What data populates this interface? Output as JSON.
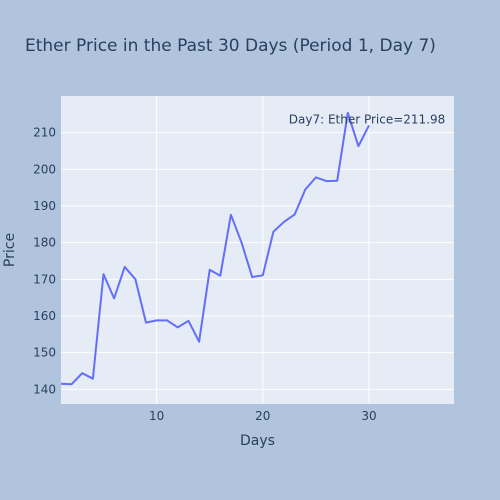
{
  "chart_data": {
    "type": "line",
    "title": "Ether Price in the Past 30 Days (Period 1, Day 7)",
    "xlabel": "Days",
    "ylabel": "Price",
    "xlim": [
      1,
      38
    ],
    "ylim": [
      136,
      220
    ],
    "xticks": [
      10,
      20,
      30
    ],
    "yticks": [
      140,
      150,
      160,
      170,
      180,
      190,
      200,
      210
    ],
    "grid": true,
    "colors": {
      "paper": "#b0c4de",
      "plot_bg": "#e5ecf6",
      "grid": "#ffffff",
      "line": "#636efa",
      "text": "#2a3f5f"
    },
    "series": [
      {
        "x": [
          1,
          2,
          3,
          4,
          5,
          6,
          7,
          8,
          9,
          10,
          11,
          12,
          13,
          14,
          15,
          16,
          17,
          18,
          19,
          20,
          21,
          22,
          23,
          24,
          25,
          26,
          27,
          28,
          29,
          30
        ],
        "y": [
          141.5,
          141.4,
          144.4,
          142.9,
          171.4,
          164.8,
          173.4,
          170.0,
          158.2,
          158.8,
          158.8,
          156.9,
          158.7,
          153.0,
          172.6,
          171.0,
          187.6,
          180.0,
          170.6,
          171.1,
          183.0,
          185.7,
          187.7,
          194.5,
          197.8,
          196.8,
          196.9,
          215.4,
          206.3,
          211.98
        ]
      }
    ],
    "annotation": {
      "text": "Day7: Ether Price=211.98",
      "x": 30,
      "y": 211.98
    }
  }
}
